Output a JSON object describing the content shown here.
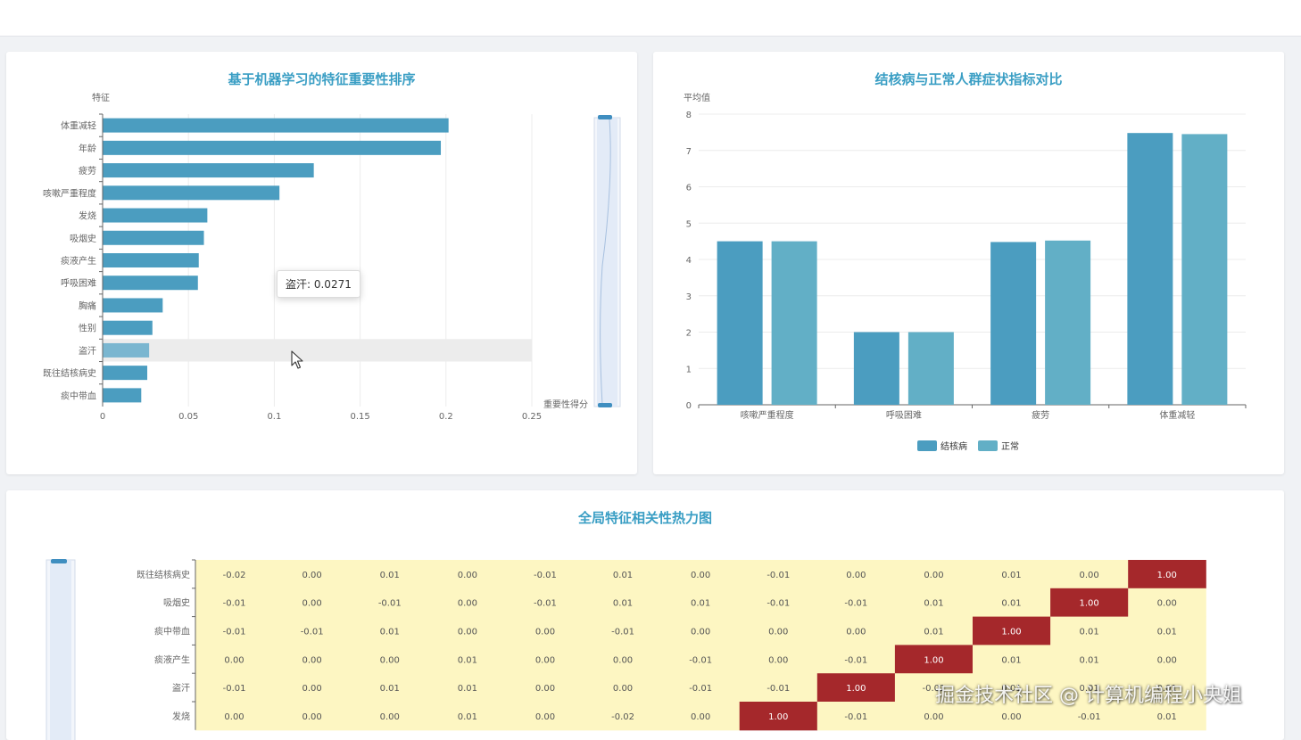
{
  "chart_data": [
    {
      "type": "bar",
      "orientation": "horizontal",
      "title": "基于机器学习的特征重要性排序",
      "ylabel": "特征",
      "xlabel": "重要性得分",
      "categories": [
        "体重减轻",
        "年龄",
        "疲劳",
        "咳嗽严重程度",
        "发烧",
        "吸烟史",
        "痰液产生",
        "呼吸困难",
        "胸痛",
        "性别",
        "盗汗",
        "既往结核病史",
        "痰中带血"
      ],
      "values": [
        0.2015,
        0.197,
        0.123,
        0.103,
        0.061,
        0.059,
        0.056,
        0.0555,
        0.035,
        0.029,
        0.0271,
        0.026,
        0.0225
      ],
      "xlim": [
        0,
        0.25
      ],
      "xticks": [
        "0",
        "0.05",
        "0.1",
        "0.15",
        "0.2",
        "0.25"
      ],
      "grid": true,
      "color": "#4b9dc0",
      "highlight_color": "#7ab6d0",
      "highlighted_category": "盗汗",
      "tooltip": "盗汗: 0.0271"
    },
    {
      "type": "bar",
      "title": "结核病与正常人群症状指标对比",
      "ylabel": "平均值",
      "xlabel": "",
      "categories": [
        "咳嗽严重程度",
        "呼吸困难",
        "疲劳",
        "体重减轻"
      ],
      "series": [
        {
          "name": "结核病",
          "values": [
            4.5,
            2.0,
            4.48,
            7.48
          ],
          "color": "#4b9dc0"
        },
        {
          "name": "正常",
          "values": [
            4.5,
            2.0,
            4.52,
            7.45
          ],
          "color": "#62afc6"
        }
      ],
      "ylim": [
        0,
        8
      ],
      "yticks": [
        "0",
        "1",
        "2",
        "3",
        "4",
        "5",
        "6",
        "7",
        "8"
      ],
      "grid": true,
      "legend_position": "bottom"
    },
    {
      "type": "heatmap",
      "title": "全局特征相关性热力图",
      "rows": [
        "既往结核病史",
        "吸烟史",
        "痰中带血",
        "痰液产生",
        "盗汗",
        "发烧"
      ],
      "cells": [
        [
          "-0.02",
          "0.00",
          "0.01",
          "0.00",
          "-0.01",
          "0.01",
          "0.00",
          "-0.01",
          "0.00",
          "0.00",
          "0.01",
          "0.00",
          "1.00"
        ],
        [
          "-0.01",
          "0.00",
          "-0.01",
          "0.00",
          "-0.01",
          "0.01",
          "0.01",
          "-0.01",
          "-0.01",
          "0.01",
          "0.01",
          "1.00",
          "0.00"
        ],
        [
          "-0.01",
          "-0.01",
          "0.01",
          "0.00",
          "0.00",
          "-0.01",
          "0.00",
          "0.00",
          "0.00",
          "0.01",
          "1.00",
          "0.01",
          "0.01"
        ],
        [
          "0.00",
          "0.00",
          "0.00",
          "0.01",
          "0.00",
          "0.00",
          "-0.01",
          "0.00",
          "-0.01",
          "1.00",
          "0.01",
          "0.01",
          "0.00"
        ],
        [
          "-0.01",
          "0.00",
          "0.01",
          "0.01",
          "0.00",
          "0.00",
          "-0.01",
          "-0.01",
          "1.00",
          "-0.01",
          "0.01",
          "0.01",
          "0.01"
        ],
        [
          "0.00",
          "0.00",
          "0.00",
          "0.01",
          "0.00",
          "-0.02",
          "0.00",
          "1.00",
          "-0.01",
          "0.00",
          "0.00",
          "-0.01",
          "0.01"
        ]
      ],
      "low_color": "#fdf6c2",
      "high_color": "#a5282b"
    }
  ],
  "watermark": "掘金技术社区 @ 计算机编程小央姐"
}
